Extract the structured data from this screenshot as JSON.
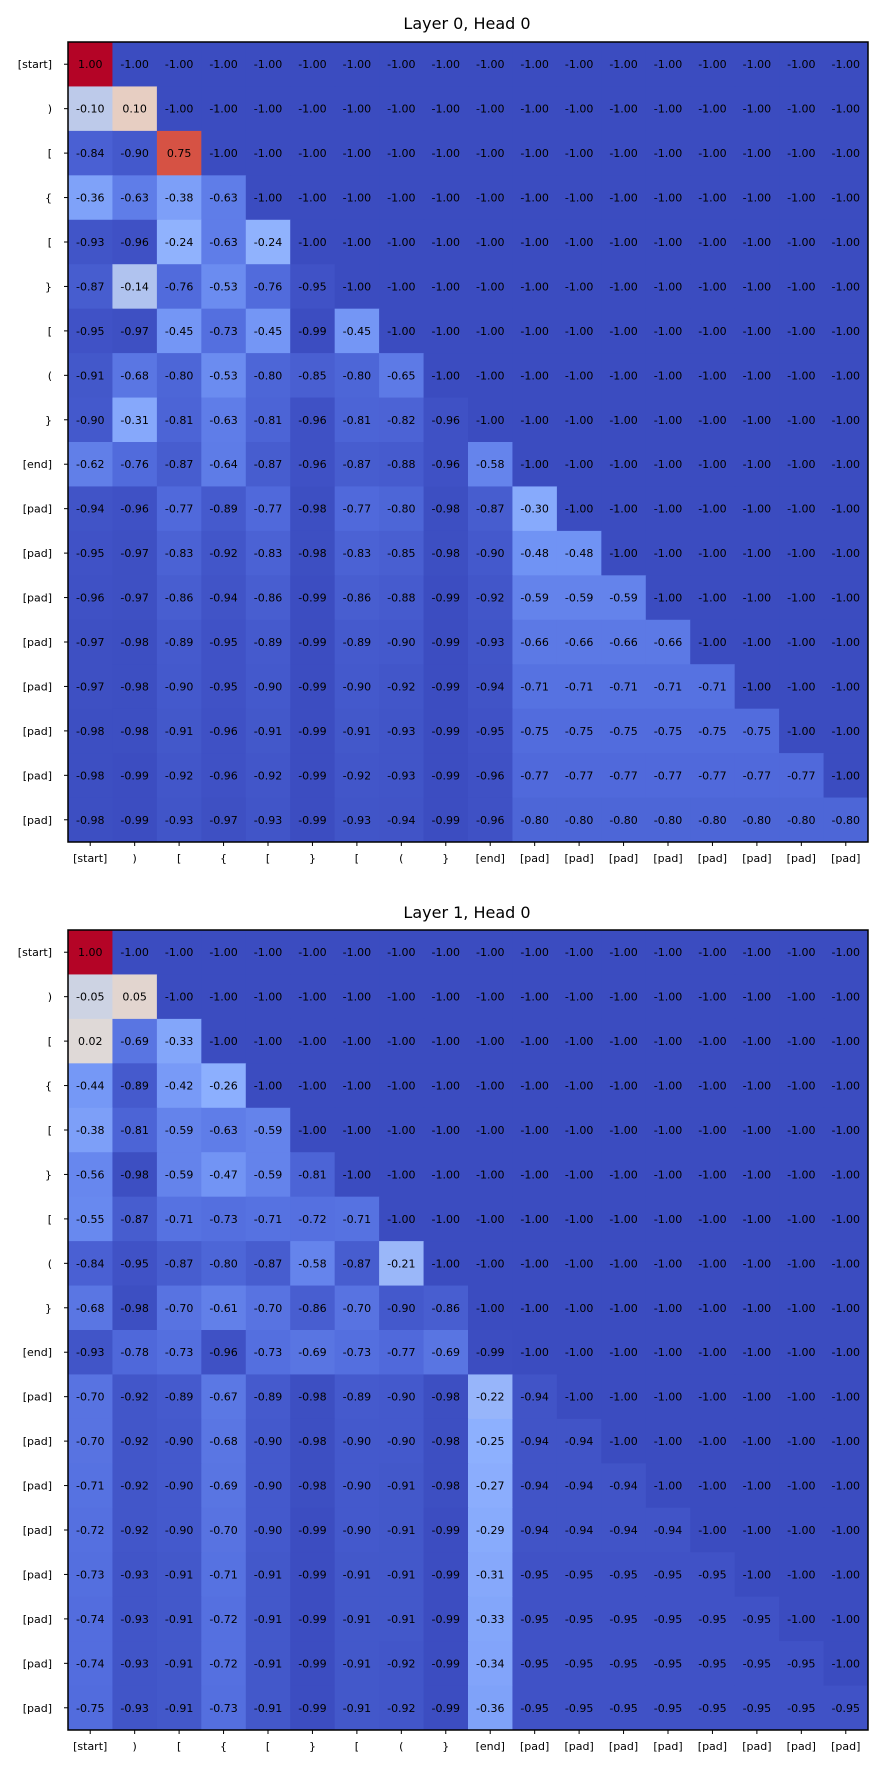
{
  "chart_data": [
    {
      "type": "heatmap",
      "title": "Layer 0, Head 0",
      "x_labels": [
        "[start]",
        ")",
        "[",
        "{",
        "[",
        "}",
        "[",
        "(",
        "}",
        "[end]",
        "[pad]",
        "[pad]",
        "[pad]",
        "[pad]",
        "[pad]",
        "[pad]",
        "[pad]",
        "[pad]"
      ],
      "y_labels": [
        "[start]",
        ")",
        "[",
        "{",
        "[",
        "}",
        "[",
        "(",
        "}",
        "[end]",
        "[pad]",
        "[pad]",
        "[pad]",
        "[pad]",
        "[pad]",
        "[pad]",
        "[pad]",
        "[pad]"
      ],
      "colormap": "coolwarm",
      "vmin": -1,
      "vmax": 1,
      "values": [
        [
          1.0,
          -1.0,
          -1.0,
          -1.0,
          -1.0,
          -1.0,
          -1.0,
          -1.0,
          -1.0,
          -1.0,
          -1.0,
          -1.0,
          -1.0,
          -1.0,
          -1.0,
          -1.0,
          -1.0,
          -1.0
        ],
        [
          -0.1,
          0.1,
          -1.0,
          -1.0,
          -1.0,
          -1.0,
          -1.0,
          -1.0,
          -1.0,
          -1.0,
          -1.0,
          -1.0,
          -1.0,
          -1.0,
          -1.0,
          -1.0,
          -1.0,
          -1.0
        ],
        [
          -0.84,
          -0.9,
          0.75,
          -1.0,
          -1.0,
          -1.0,
          -1.0,
          -1.0,
          -1.0,
          -1.0,
          -1.0,
          -1.0,
          -1.0,
          -1.0,
          -1.0,
          -1.0,
          -1.0,
          -1.0
        ],
        [
          -0.36,
          -0.63,
          -0.38,
          -0.63,
          -1.0,
          -1.0,
          -1.0,
          -1.0,
          -1.0,
          -1.0,
          -1.0,
          -1.0,
          -1.0,
          -1.0,
          -1.0,
          -1.0,
          -1.0,
          -1.0
        ],
        [
          -0.93,
          -0.96,
          -0.24,
          -0.63,
          -0.24,
          -1.0,
          -1.0,
          -1.0,
          -1.0,
          -1.0,
          -1.0,
          -1.0,
          -1.0,
          -1.0,
          -1.0,
          -1.0,
          -1.0,
          -1.0
        ],
        [
          -0.87,
          -0.14,
          -0.76,
          -0.53,
          -0.76,
          -0.95,
          -1.0,
          -1.0,
          -1.0,
          -1.0,
          -1.0,
          -1.0,
          -1.0,
          -1.0,
          -1.0,
          -1.0,
          -1.0,
          -1.0
        ],
        [
          -0.95,
          -0.97,
          -0.45,
          -0.73,
          -0.45,
          -0.99,
          -0.45,
          -1.0,
          -1.0,
          -1.0,
          -1.0,
          -1.0,
          -1.0,
          -1.0,
          -1.0,
          -1.0,
          -1.0,
          -1.0
        ],
        [
          -0.91,
          -0.68,
          -0.8,
          -0.53,
          -0.8,
          -0.85,
          -0.8,
          -0.65,
          -1.0,
          -1.0,
          -1.0,
          -1.0,
          -1.0,
          -1.0,
          -1.0,
          -1.0,
          -1.0,
          -1.0
        ],
        [
          -0.9,
          -0.31,
          -0.81,
          -0.63,
          -0.81,
          -0.96,
          -0.81,
          -0.82,
          -0.96,
          -1.0,
          -1.0,
          -1.0,
          -1.0,
          -1.0,
          -1.0,
          -1.0,
          -1.0,
          -1.0
        ],
        [
          -0.62,
          -0.76,
          -0.87,
          -0.64,
          -0.87,
          -0.96,
          -0.87,
          -0.88,
          -0.96,
          -0.58,
          -1.0,
          -1.0,
          -1.0,
          -1.0,
          -1.0,
          -1.0,
          -1.0,
          -1.0
        ],
        [
          -0.94,
          -0.96,
          -0.77,
          -0.89,
          -0.77,
          -0.98,
          -0.77,
          -0.8,
          -0.98,
          -0.87,
          -0.3,
          -1.0,
          -1.0,
          -1.0,
          -1.0,
          -1.0,
          -1.0,
          -1.0
        ],
        [
          -0.95,
          -0.97,
          -0.83,
          -0.92,
          -0.83,
          -0.98,
          -0.83,
          -0.85,
          -0.98,
          -0.9,
          -0.48,
          -0.48,
          -1.0,
          -1.0,
          -1.0,
          -1.0,
          -1.0,
          -1.0
        ],
        [
          -0.96,
          -0.97,
          -0.86,
          -0.94,
          -0.86,
          -0.99,
          -0.86,
          -0.88,
          -0.99,
          -0.92,
          -0.59,
          -0.59,
          -0.59,
          -1.0,
          -1.0,
          -1.0,
          -1.0,
          -1.0
        ],
        [
          -0.97,
          -0.98,
          -0.89,
          -0.95,
          -0.89,
          -0.99,
          -0.89,
          -0.9,
          -0.99,
          -0.93,
          -0.66,
          -0.66,
          -0.66,
          -0.66,
          -1.0,
          -1.0,
          -1.0,
          -1.0
        ],
        [
          -0.97,
          -0.98,
          -0.9,
          -0.95,
          -0.9,
          -0.99,
          -0.9,
          -0.92,
          -0.99,
          -0.94,
          -0.71,
          -0.71,
          -0.71,
          -0.71,
          -0.71,
          -1.0,
          -1.0,
          -1.0
        ],
        [
          -0.98,
          -0.98,
          -0.91,
          -0.96,
          -0.91,
          -0.99,
          -0.91,
          -0.93,
          -0.99,
          -0.95,
          -0.75,
          -0.75,
          -0.75,
          -0.75,
          -0.75,
          -0.75,
          -1.0,
          -1.0
        ],
        [
          -0.98,
          -0.99,
          -0.92,
          -0.96,
          -0.92,
          -0.99,
          -0.92,
          -0.93,
          -0.99,
          -0.96,
          -0.77,
          -0.77,
          -0.77,
          -0.77,
          -0.77,
          -0.77,
          -0.77,
          -1.0
        ],
        [
          -0.98,
          -0.99,
          -0.93,
          -0.97,
          -0.93,
          -0.99,
          -0.93,
          -0.94,
          -0.99,
          -0.96,
          -0.8,
          -0.8,
          -0.8,
          -0.8,
          -0.8,
          -0.8,
          -0.8,
          -0.8
        ]
      ]
    },
    {
      "type": "heatmap",
      "title": "Layer 1, Head 0",
      "x_labels": [
        "[start]",
        ")",
        "[",
        "{",
        "[",
        "}",
        "[",
        "(",
        "}",
        "[end]",
        "[pad]",
        "[pad]",
        "[pad]",
        "[pad]",
        "[pad]",
        "[pad]",
        "[pad]",
        "[pad]"
      ],
      "y_labels": [
        "[start]",
        ")",
        "[",
        "{",
        "[",
        "}",
        "[",
        "(",
        "}",
        "[end]",
        "[pad]",
        "[pad]",
        "[pad]",
        "[pad]",
        "[pad]",
        "[pad]",
        "[pad]",
        "[pad]"
      ],
      "colormap": "coolwarm",
      "vmin": -1,
      "vmax": 1,
      "values": [
        [
          1.0,
          -1.0,
          -1.0,
          -1.0,
          -1.0,
          -1.0,
          -1.0,
          -1.0,
          -1.0,
          -1.0,
          -1.0,
          -1.0,
          -1.0,
          -1.0,
          -1.0,
          -1.0,
          -1.0,
          -1.0
        ],
        [
          -0.05,
          0.05,
          -1.0,
          -1.0,
          -1.0,
          -1.0,
          -1.0,
          -1.0,
          -1.0,
          -1.0,
          -1.0,
          -1.0,
          -1.0,
          -1.0,
          -1.0,
          -1.0,
          -1.0,
          -1.0
        ],
        [
          0.02,
          -0.69,
          -0.33,
          -1.0,
          -1.0,
          -1.0,
          -1.0,
          -1.0,
          -1.0,
          -1.0,
          -1.0,
          -1.0,
          -1.0,
          -1.0,
          -1.0,
          -1.0,
          -1.0,
          -1.0
        ],
        [
          -0.44,
          -0.89,
          -0.42,
          -0.26,
          -1.0,
          -1.0,
          -1.0,
          -1.0,
          -1.0,
          -1.0,
          -1.0,
          -1.0,
          -1.0,
          -1.0,
          -1.0,
          -1.0,
          -1.0,
          -1.0
        ],
        [
          -0.38,
          -0.81,
          -0.59,
          -0.63,
          -0.59,
          -1.0,
          -1.0,
          -1.0,
          -1.0,
          -1.0,
          -1.0,
          -1.0,
          -1.0,
          -1.0,
          -1.0,
          -1.0,
          -1.0,
          -1.0
        ],
        [
          -0.56,
          -0.98,
          -0.59,
          -0.47,
          -0.59,
          -0.81,
          -1.0,
          -1.0,
          -1.0,
          -1.0,
          -1.0,
          -1.0,
          -1.0,
          -1.0,
          -1.0,
          -1.0,
          -1.0,
          -1.0
        ],
        [
          -0.55,
          -0.87,
          -0.71,
          -0.73,
          -0.71,
          -0.72,
          -0.71,
          -1.0,
          -1.0,
          -1.0,
          -1.0,
          -1.0,
          -1.0,
          -1.0,
          -1.0,
          -1.0,
          -1.0,
          -1.0
        ],
        [
          -0.84,
          -0.95,
          -0.87,
          -0.8,
          -0.87,
          -0.58,
          -0.87,
          -0.21,
          -1.0,
          -1.0,
          -1.0,
          -1.0,
          -1.0,
          -1.0,
          -1.0,
          -1.0,
          -1.0,
          -1.0
        ],
        [
          -0.68,
          -0.98,
          -0.7,
          -0.61,
          -0.7,
          -0.86,
          -0.7,
          -0.9,
          -0.86,
          -1.0,
          -1.0,
          -1.0,
          -1.0,
          -1.0,
          -1.0,
          -1.0,
          -1.0,
          -1.0
        ],
        [
          -0.93,
          -0.78,
          -0.73,
          -0.96,
          -0.73,
          -0.69,
          -0.73,
          -0.77,
          -0.69,
          -0.99,
          -1.0,
          -1.0,
          -1.0,
          -1.0,
          -1.0,
          -1.0,
          -1.0,
          -1.0
        ],
        [
          -0.7,
          -0.92,
          -0.89,
          -0.67,
          -0.89,
          -0.98,
          -0.89,
          -0.9,
          -0.98,
          -0.22,
          -0.94,
          -1.0,
          -1.0,
          -1.0,
          -1.0,
          -1.0,
          -1.0,
          -1.0
        ],
        [
          -0.7,
          -0.92,
          -0.9,
          -0.68,
          -0.9,
          -0.98,
          -0.9,
          -0.9,
          -0.98,
          -0.25,
          -0.94,
          -0.94,
          -1.0,
          -1.0,
          -1.0,
          -1.0,
          -1.0,
          -1.0
        ],
        [
          -0.71,
          -0.92,
          -0.9,
          -0.69,
          -0.9,
          -0.98,
          -0.9,
          -0.91,
          -0.98,
          -0.27,
          -0.94,
          -0.94,
          -0.94,
          -1.0,
          -1.0,
          -1.0,
          -1.0,
          -1.0
        ],
        [
          -0.72,
          -0.92,
          -0.9,
          -0.7,
          -0.9,
          -0.99,
          -0.9,
          -0.91,
          -0.99,
          -0.29,
          -0.94,
          -0.94,
          -0.94,
          -0.94,
          -1.0,
          -1.0,
          -1.0,
          -1.0
        ],
        [
          -0.73,
          -0.93,
          -0.91,
          -0.71,
          -0.91,
          -0.99,
          -0.91,
          -0.91,
          -0.99,
          -0.31,
          -0.95,
          -0.95,
          -0.95,
          -0.95,
          -0.95,
          -1.0,
          -1.0,
          -1.0
        ],
        [
          -0.74,
          -0.93,
          -0.91,
          -0.72,
          -0.91,
          -0.99,
          -0.91,
          -0.91,
          -0.99,
          -0.33,
          -0.95,
          -0.95,
          -0.95,
          -0.95,
          -0.95,
          -0.95,
          -1.0,
          -1.0
        ],
        [
          -0.74,
          -0.93,
          -0.91,
          -0.72,
          -0.91,
          -0.99,
          -0.91,
          -0.92,
          -0.99,
          -0.34,
          -0.95,
          -0.95,
          -0.95,
          -0.95,
          -0.95,
          -0.95,
          -0.95,
          -1.0
        ],
        [
          -0.75,
          -0.93,
          -0.91,
          -0.73,
          -0.91,
          -0.99,
          -0.91,
          -0.92,
          -0.99,
          -0.36,
          -0.95,
          -0.95,
          -0.95,
          -0.95,
          -0.95,
          -0.95,
          -0.95,
          -0.95
        ]
      ]
    }
  ]
}
